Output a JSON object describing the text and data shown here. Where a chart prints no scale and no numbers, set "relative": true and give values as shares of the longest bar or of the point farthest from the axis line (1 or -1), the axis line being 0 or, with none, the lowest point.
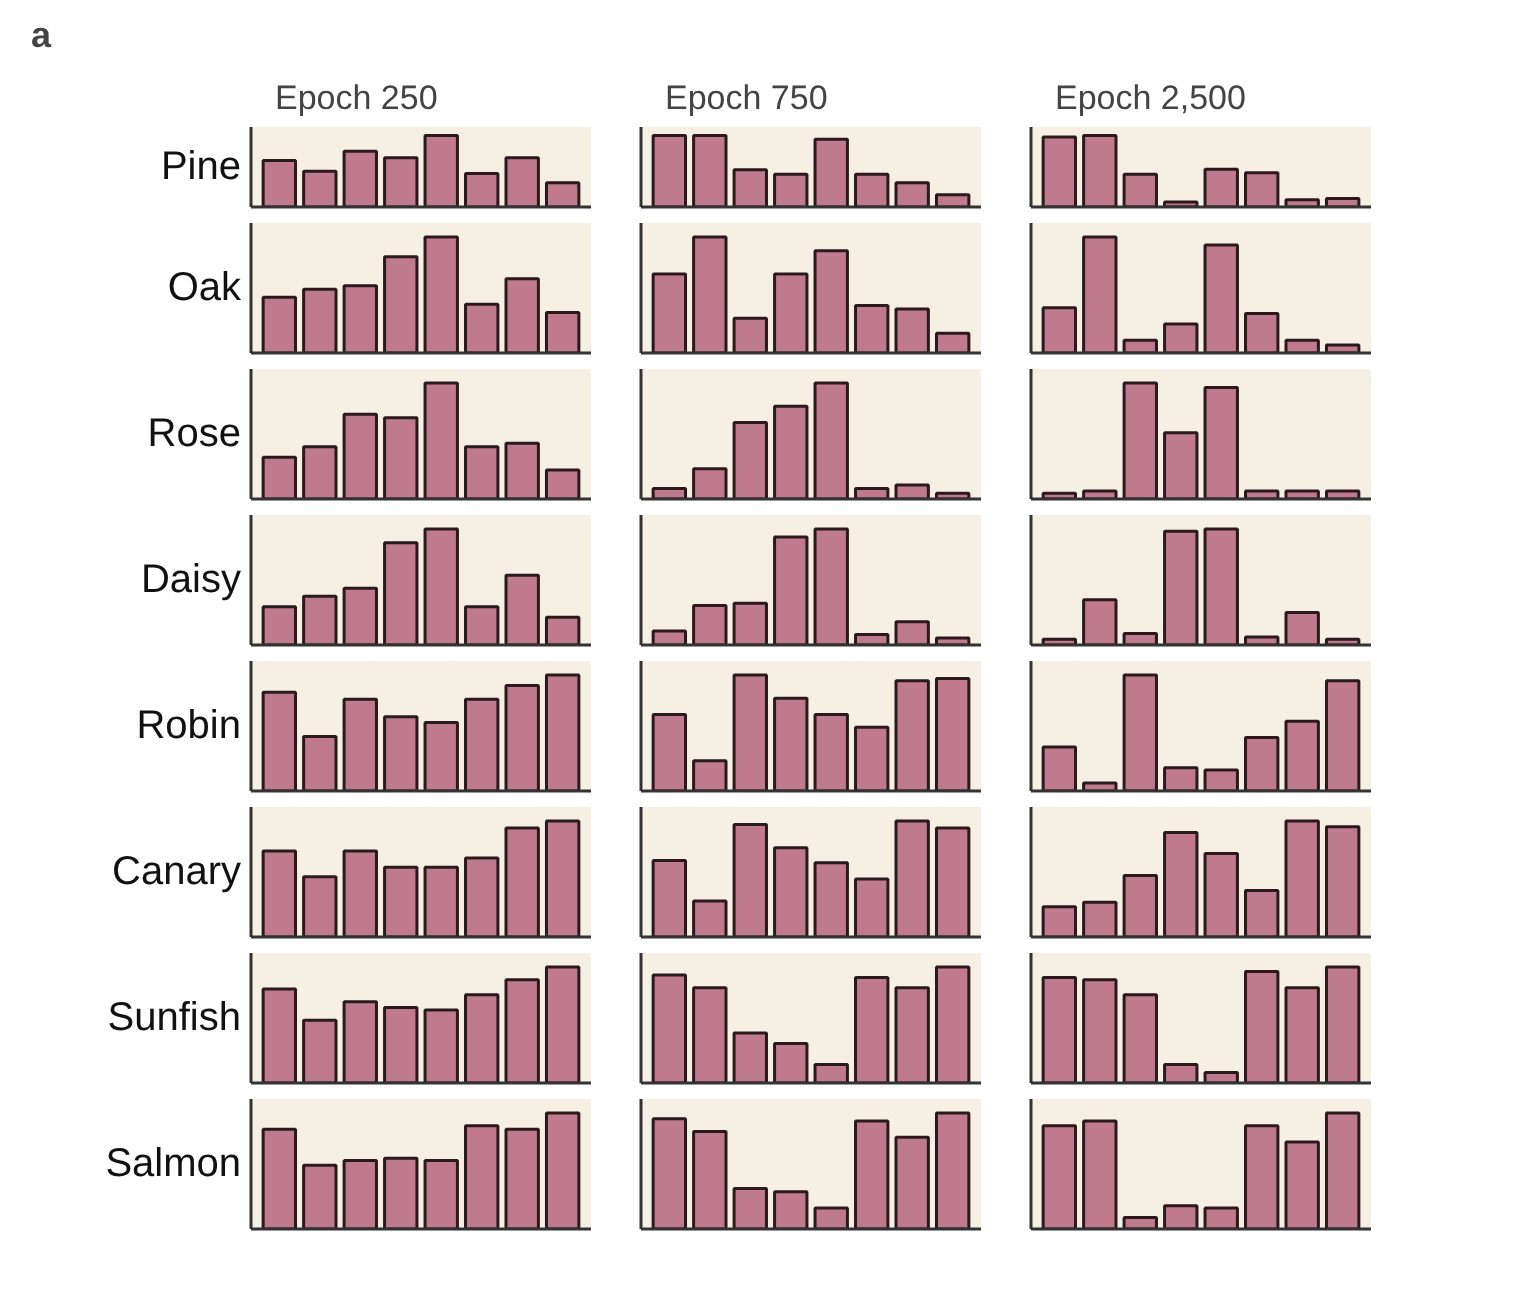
{
  "chart_data": [
    {
      "type": "bar",
      "relative": true,
      "title": "Epoch 250",
      "ylabel": "Pine",
      "annotations": [
        "a"
      ],
      "categories": [
        null,
        null,
        null,
        null,
        null,
        null,
        null,
        null
      ],
      "color": "#c07a8e",
      "values": [
        0.65,
        0.5,
        0.78,
        0.69,
        1,
        0.47,
        0.69,
        0.34
      ]
    },
    {
      "type": "bar",
      "relative": true,
      "title": "Epoch 750",
      "categories": [
        null,
        null,
        null,
        null,
        null,
        null,
        null,
        null
      ],
      "color": "#c07a8e",
      "values": [
        1,
        1,
        0.52,
        0.46,
        0.95,
        0.46,
        0.34,
        0.17
      ]
    },
    {
      "type": "bar",
      "relative": true,
      "title": "Epoch 2,500",
      "categories": [
        null,
        null,
        null,
        null,
        null,
        null,
        null,
        null
      ],
      "color": "#c07a8e",
      "values": [
        0.98,
        1,
        0.46,
        0.07,
        0.53,
        0.48,
        0.1,
        0.12
      ]
    },
    {
      "type": "bar",
      "relative": true,
      "ylabel": "Oak",
      "categories": [
        null,
        null,
        null,
        null,
        null,
        null,
        null,
        null
      ],
      "color": "#c07a8e",
      "values": [
        0.48,
        0.55,
        0.58,
        0.83,
        1,
        0.42,
        0.64,
        0.35
      ]
    },
    {
      "type": "bar",
      "relative": true,
      "categories": [
        null,
        null,
        null,
        null,
        null,
        null,
        null,
        null
      ],
      "color": "#c07a8e",
      "values": [
        0.68,
        1,
        0.3,
        0.68,
        0.88,
        0.41,
        0.38,
        0.17
      ]
    },
    {
      "type": "bar",
      "relative": true,
      "categories": [
        null,
        null,
        null,
        null,
        null,
        null,
        null,
        null
      ],
      "color": "#c07a8e",
      "values": [
        0.39,
        1,
        0.11,
        0.25,
        0.93,
        0.34,
        0.11,
        0.07
      ]
    },
    {
      "type": "bar",
      "relative": true,
      "ylabel": "Rose",
      "categories": [
        null,
        null,
        null,
        null,
        null,
        null,
        null,
        null
      ],
      "color": "#c07a8e",
      "values": [
        0.36,
        0.45,
        0.73,
        0.7,
        1,
        0.45,
        0.48,
        0.25
      ]
    },
    {
      "type": "bar",
      "relative": true,
      "categories": [
        null,
        null,
        null,
        null,
        null,
        null,
        null,
        null
      ],
      "color": "#c07a8e",
      "values": [
        0.09,
        0.26,
        0.66,
        0.8,
        1,
        0.09,
        0.12,
        0.05
      ]
    },
    {
      "type": "bar",
      "relative": true,
      "categories": [
        null,
        null,
        null,
        null,
        null,
        null,
        null,
        null
      ],
      "color": "#c07a8e",
      "values": [
        0.05,
        0.07,
        1,
        0.57,
        0.96,
        0.07,
        0.07,
        0.07
      ]
    },
    {
      "type": "bar",
      "relative": true,
      "ylabel": "Daisy",
      "categories": [
        null,
        null,
        null,
        null,
        null,
        null,
        null,
        null
      ],
      "color": "#c07a8e",
      "values": [
        0.33,
        0.42,
        0.49,
        0.88,
        1,
        0.33,
        0.6,
        0.24
      ]
    },
    {
      "type": "bar",
      "relative": true,
      "categories": [
        null,
        null,
        null,
        null,
        null,
        null,
        null,
        null
      ],
      "color": "#c07a8e",
      "values": [
        0.12,
        0.34,
        0.36,
        0.93,
        1,
        0.09,
        0.2,
        0.06
      ]
    },
    {
      "type": "bar",
      "relative": true,
      "categories": [
        null,
        null,
        null,
        null,
        null,
        null,
        null,
        null
      ],
      "color": "#c07a8e",
      "values": [
        0.05,
        0.39,
        0.1,
        0.98,
        1,
        0.07,
        0.28,
        0.05
      ]
    },
    {
      "type": "bar",
      "relative": true,
      "ylabel": "Robin",
      "categories": [
        null,
        null,
        null,
        null,
        null,
        null,
        null,
        null
      ],
      "color": "#c07a8e",
      "values": [
        0.85,
        0.47,
        0.79,
        0.64,
        0.59,
        0.79,
        0.91,
        1
      ]
    },
    {
      "type": "bar",
      "relative": true,
      "categories": [
        null,
        null,
        null,
        null,
        null,
        null,
        null,
        null
      ],
      "color": "#c07a8e",
      "values": [
        0.66,
        0.26,
        1,
        0.8,
        0.66,
        0.55,
        0.95,
        0.97
      ]
    },
    {
      "type": "bar",
      "relative": true,
      "categories": [
        null,
        null,
        null,
        null,
        null,
        null,
        null,
        null
      ],
      "color": "#c07a8e",
      "values": [
        0.38,
        0.07,
        1,
        0.2,
        0.18,
        0.46,
        0.6,
        0.95
      ]
    },
    {
      "type": "bar",
      "relative": true,
      "ylabel": "Canary",
      "categories": [
        null,
        null,
        null,
        null,
        null,
        null,
        null,
        null
      ],
      "color": "#c07a8e",
      "values": [
        0.74,
        0.52,
        0.74,
        0.6,
        0.6,
        0.68,
        0.94,
        1
      ]
    },
    {
      "type": "bar",
      "relative": true,
      "categories": [
        null,
        null,
        null,
        null,
        null,
        null,
        null,
        null
      ],
      "color": "#c07a8e",
      "values": [
        0.66,
        0.31,
        0.97,
        0.77,
        0.64,
        0.5,
        1,
        0.94
      ]
    },
    {
      "type": "bar",
      "relative": true,
      "categories": [
        null,
        null,
        null,
        null,
        null,
        null,
        null,
        null
      ],
      "color": "#c07a8e",
      "values": [
        0.26,
        0.3,
        0.53,
        0.9,
        0.72,
        0.4,
        1,
        0.95
      ]
    },
    {
      "type": "bar",
      "relative": true,
      "ylabel": "Sunfish",
      "categories": [
        null,
        null,
        null,
        null,
        null,
        null,
        null,
        null
      ],
      "color": "#c07a8e",
      "values": [
        0.81,
        0.54,
        0.7,
        0.65,
        0.63,
        0.76,
        0.89,
        1
      ]
    },
    {
      "type": "bar",
      "relative": true,
      "categories": [
        null,
        null,
        null,
        null,
        null,
        null,
        null,
        null
      ],
      "color": "#c07a8e",
      "values": [
        0.93,
        0.82,
        0.43,
        0.34,
        0.16,
        0.91,
        0.82,
        1
      ]
    },
    {
      "type": "bar",
      "relative": true,
      "categories": [
        null,
        null,
        null,
        null,
        null,
        null,
        null,
        null
      ],
      "color": "#c07a8e",
      "values": [
        0.91,
        0.89,
        0.76,
        0.16,
        0.09,
        0.96,
        0.82,
        1
      ]
    },
    {
      "type": "bar",
      "relative": true,
      "ylabel": "Salmon",
      "categories": [
        null,
        null,
        null,
        null,
        null,
        null,
        null,
        null
      ],
      "color": "#c07a8e",
      "values": [
        0.86,
        0.55,
        0.59,
        0.61,
        0.59,
        0.89,
        0.86,
        1
      ]
    },
    {
      "type": "bar",
      "relative": true,
      "categories": [
        null,
        null,
        null,
        null,
        null,
        null,
        null,
        null
      ],
      "color": "#c07a8e",
      "values": [
        0.95,
        0.84,
        0.35,
        0.32,
        0.18,
        0.93,
        0.79,
        1
      ]
    },
    {
      "type": "bar",
      "relative": true,
      "categories": [
        null,
        null,
        null,
        null,
        null,
        null,
        null,
        null
      ],
      "color": "#c07a8e",
      "values": [
        0.89,
        0.93,
        0.1,
        0.2,
        0.18,
        0.89,
        0.75,
        1
      ]
    }
  ]
}
